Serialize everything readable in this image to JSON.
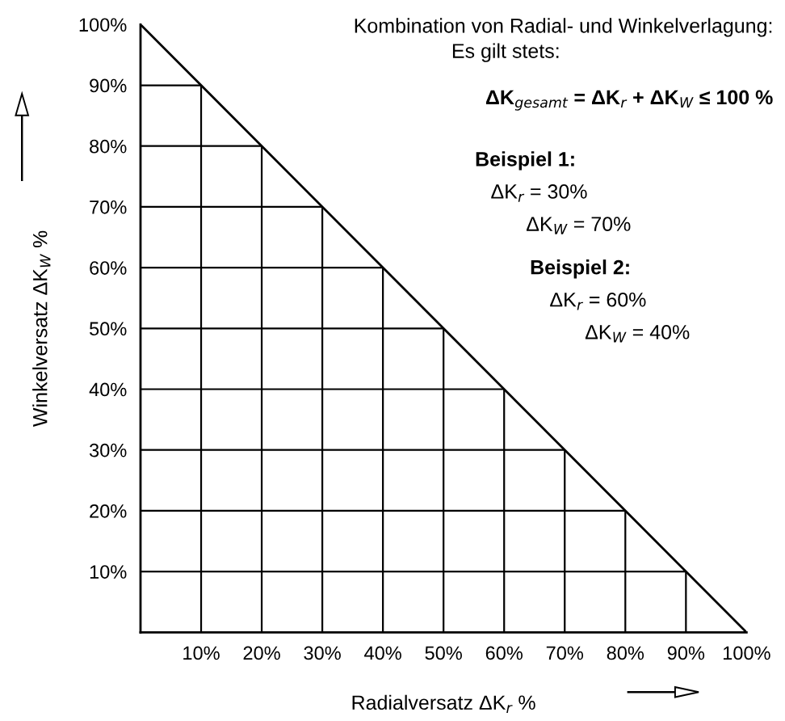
{
  "chart_data": {
    "type": "line",
    "x": [
      0,
      100
    ],
    "values": [
      100,
      0
    ],
    "color": "#000000",
    "xlim": [
      0,
      100
    ],
    "ylim": [
      0,
      100
    ],
    "xticks": [
      {
        "value": 10,
        "label": "10%"
      },
      {
        "value": 20,
        "label": "20%"
      },
      {
        "value": 30,
        "label": "30%"
      },
      {
        "value": 40,
        "label": "40%"
      },
      {
        "value": 50,
        "label": "50%"
      },
      {
        "value": 60,
        "label": "60%"
      },
      {
        "value": 70,
        "label": "70%"
      },
      {
        "value": 80,
        "label": "80%"
      },
      {
        "value": 90,
        "label": "90%"
      },
      {
        "value": 100,
        "label": "100%"
      }
    ],
    "yticks": [
      {
        "value": 10,
        "label": "10%"
      },
      {
        "value": 20,
        "label": "20%"
      },
      {
        "value": 30,
        "label": "30%"
      },
      {
        "value": 40,
        "label": "40%"
      },
      {
        "value": 50,
        "label": "50%"
      },
      {
        "value": 60,
        "label": "60%"
      },
      {
        "value": 70,
        "label": "70%"
      },
      {
        "value": 80,
        "label": "80%"
      },
      {
        "value": 90,
        "label": "90%"
      },
      {
        "value": 100,
        "label": "100%"
      }
    ],
    "xlabel": "Radialversatz ΔK$_{r}$ %",
    "ylabel": "Winkelversatz ΔK$_{W}$ %",
    "grid": true,
    "annotations": [
      "Kombination von Radial- und Winkelverlagung:",
      "Es gilt stets:",
      "ΔK$_{gesamt}$ = ΔK$_{r}$ + ΔK$_{W}$ ≤ 100 %",
      "Beispiel 1:",
      "ΔK$_{r}$ = 30%",
      "ΔK$_{W}$ = 70%",
      "Beispiel 2:",
      "ΔK$_{r}$ = 60%",
      "ΔK$_{W}$ = 40%"
    ]
  }
}
